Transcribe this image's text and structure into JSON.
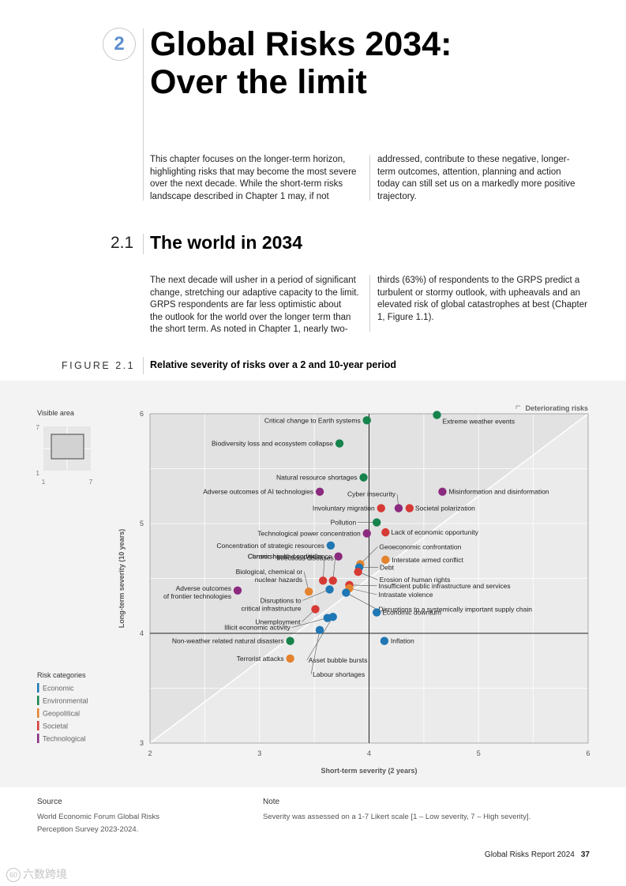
{
  "chapter": {
    "number": "2",
    "title_line1": "Global Risks 2034:",
    "title_line2": "Over the limit"
  },
  "intro": {
    "col1": [
      "This chapter focuses on the longer-term horizon,",
      "highlighting risks that may become the most severe",
      "over the next decade. While the short-term risks",
      "landscape described in Chapter 1 may, if not"
    ],
    "col2": [
      "addressed, contribute to these negative, longer-",
      "term outcomes, attention, planning and action",
      "today can still set us on a markedly more positive",
      "trajectory."
    ]
  },
  "section": {
    "number": "2.1",
    "title": "The world in 2034",
    "col1": [
      "The next decade will usher in a period of significant",
      "change, stretching our adaptive capacity to the limit.",
      "GRPS respondents are far less optimistic about",
      "the outlook for the world over the longer term than",
      "the short term. As noted in Chapter 1, nearly two-"
    ],
    "col2": [
      "thirds (63%) of respondents to the GRPS predict a",
      "turbulent or stormy outlook, with upheavals and an",
      "elevated risk of global catastrophes at best (Chapter",
      "1, Figure 1.1)."
    ]
  },
  "figure": {
    "label": "FIGURE 2.1",
    "title": "Relative severity of risks over a 2 and 10-year period"
  },
  "chart_data": {
    "type": "scatter",
    "xlabel": "Short-term severity (2 years)",
    "ylabel": "Long-term severity (10 years)",
    "xlim": [
      2,
      6
    ],
    "ylim": [
      3,
      6
    ],
    "x_ticks": [
      "2",
      "3",
      "4",
      "5",
      "6"
    ],
    "y_ticks": [
      "3",
      "4",
      "5",
      "6"
    ],
    "grid": true,
    "reference_lines": {
      "x": 4,
      "y": 4
    },
    "deteriorating_label": "Deteriorating risks",
    "visible_area": {
      "title": "Visible area",
      "ticks": [
        "7",
        "1",
        "1",
        "7"
      ]
    },
    "legend": {
      "title": "Risk categories",
      "items": [
        {
          "name": "Economic",
          "color": "#1f77b4"
        },
        {
          "name": "Environmental",
          "color": "#17834c"
        },
        {
          "name": "Geopolitical",
          "color": "#e4832e"
        },
        {
          "name": "Societal",
          "color": "#d63a35"
        },
        {
          "name": "Technological",
          "color": "#8b2a7f"
        }
      ]
    },
    "points": [
      {
        "label": "Critical change to Earth systems",
        "category": "Environmental",
        "x": 3.98,
        "y": 5.94
      },
      {
        "label": "Extreme weather events",
        "category": "Environmental",
        "x": 4.62,
        "y": 5.99
      },
      {
        "label": "Biodiversity loss and ecosystem collapse",
        "category": "Environmental",
        "x": 3.73,
        "y": 5.73
      },
      {
        "label": "Natural resource shortages",
        "category": "Environmental",
        "x": 3.95,
        "y": 5.42
      },
      {
        "label": "Adverse outcomes of AI technologies",
        "category": "Technological",
        "x": 3.55,
        "y": 5.29
      },
      {
        "label": "Cyber insecurity",
        "category": "Technological",
        "x": 4.27,
        "y": 5.14
      },
      {
        "label": "Misinformation and disinformation",
        "category": "Technological",
        "x": 4.67,
        "y": 5.29
      },
      {
        "label": "Involuntary migration",
        "category": "Societal",
        "x": 4.11,
        "y": 5.14
      },
      {
        "label": "Societal polarization",
        "category": "Societal",
        "x": 4.37,
        "y": 5.14
      },
      {
        "label": "Pollution",
        "category": "Environmental",
        "x": 4.07,
        "y": 5.01
      },
      {
        "label": "Technological power concentration",
        "category": "Technological",
        "x": 3.98,
        "y": 4.91
      },
      {
        "label": "Lack of economic opportunity",
        "category": "Societal",
        "x": 4.15,
        "y": 4.92
      },
      {
        "label": "Concentration of strategic resources",
        "category": "Economic",
        "x": 3.65,
        "y": 4.8
      },
      {
        "label": "Geoeconomic confrontation",
        "category": "Geopolitical",
        "x": 3.92,
        "y": 4.63
      },
      {
        "label": "Censorship and surveillance",
        "category": "Technological",
        "x": 3.72,
        "y": 4.7
      },
      {
        "label": "Interstate armed conflict",
        "category": "Geopolitical",
        "x": 4.15,
        "y": 4.67
      },
      {
        "label": "Infectious diseases",
        "category": "Societal",
        "x": 3.67,
        "y": 4.48
      },
      {
        "label": "Debt",
        "category": "Economic",
        "x": 3.91,
        "y": 4.6
      },
      {
        "label": "Chronic health conditions",
        "category": "Societal",
        "x": 3.58,
        "y": 4.48
      },
      {
        "label": "Erosion of human rights",
        "category": "Societal",
        "x": 3.9,
        "y": 4.56
      },
      {
        "label": "Biological, chemical or nuclear hazards",
        "category": "Geopolitical",
        "x": 3.45,
        "y": 4.38
      },
      {
        "label": "Insufficient public infrastructure and services",
        "category": "Societal",
        "x": 3.82,
        "y": 4.44
      },
      {
        "label": "Adverse outcomes of frontier technologies",
        "category": "Technological",
        "x": 2.8,
        "y": 4.39
      },
      {
        "label": "Intrastate violence",
        "category": "Geopolitical",
        "x": 3.82,
        "y": 4.41
      },
      {
        "label": "Disruptions to critical infrastructure",
        "category": "Economic",
        "x": 3.64,
        "y": 4.4
      },
      {
        "label": "Disruptions to a systemically important supply chain",
        "category": "Economic",
        "x": 3.79,
        "y": 4.37
      },
      {
        "label": "Unemployment",
        "category": "Societal",
        "x": 3.51,
        "y": 4.22
      },
      {
        "label": "Economic downturn",
        "category": "Economic",
        "x": 4.07,
        "y": 4.19
      },
      {
        "label": "Illicit economic activity",
        "category": "Economic",
        "x": 3.62,
        "y": 4.14
      },
      {
        "label": "Asset bubble bursts",
        "category": "Economic",
        "x": 3.67,
        "y": 4.15
      },
      {
        "label": "Labour shortages",
        "category": "Economic",
        "x": 3.55,
        "y": 4.03
      },
      {
        "label": "Non-weather related natural disasters",
        "category": "Environmental",
        "x": 3.28,
        "y": 3.93
      },
      {
        "label": "Inflation",
        "category": "Economic",
        "x": 4.14,
        "y": 3.93
      },
      {
        "label": "Terrorist attacks",
        "category": "Geopolitical",
        "x": 3.28,
        "y": 3.77
      }
    ]
  },
  "source": {
    "heading": "Source",
    "lines": [
      "World Economic Forum Global Risks",
      "Perception Survey 2023-2024."
    ]
  },
  "note": {
    "heading": "Note",
    "text": "Severity was assessed on a 1-7 Likert scale [1 – Low severity, 7 – High severity]."
  },
  "page": {
    "report": "Global Risks Report 2024",
    "number": "37"
  },
  "watermark": "六数跨境"
}
